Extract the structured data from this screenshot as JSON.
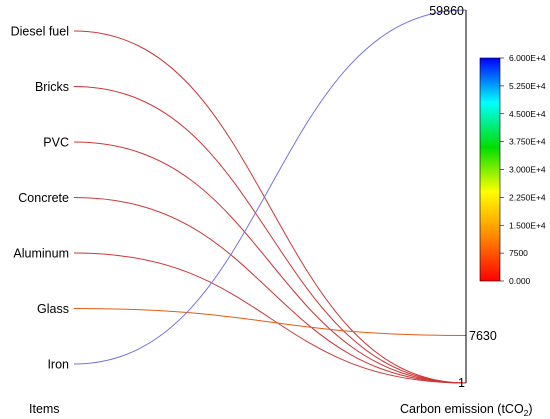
{
  "chart_data": {
    "type": "parallel-coordinates",
    "title": "",
    "axes": [
      {
        "name": "Items",
        "type": "categorical"
      },
      {
        "name": "Carbon emission",
        "unit": "tCO",
        "unit_subscript": "2",
        "min": 1,
        "max": 59860,
        "labeled_ticks": [
          "59860",
          "7630",
          "1"
        ]
      }
    ],
    "categories": [
      "Diesel fuel",
      "Bricks",
      "PVC",
      "Concrete",
      "Aluminum",
      "Glass",
      "Iron"
    ],
    "values": [
      1,
      1,
      1,
      1,
      1,
      7630,
      59860
    ],
    "colorbar": {
      "min": 0,
      "max": 60000,
      "ticks": [
        "6.000E+4",
        "5.250E+4",
        "4.500E+4",
        "3.750E+4",
        "3.000E+4",
        "2.250E+4",
        "1.500E+4",
        "7500",
        "0.000"
      ],
      "colormap": [
        "#ff0000",
        "#ff8800",
        "#ffff00",
        "#00dd00",
        "#00ffff",
        "#0000ff"
      ],
      "placement": "right"
    }
  }
}
